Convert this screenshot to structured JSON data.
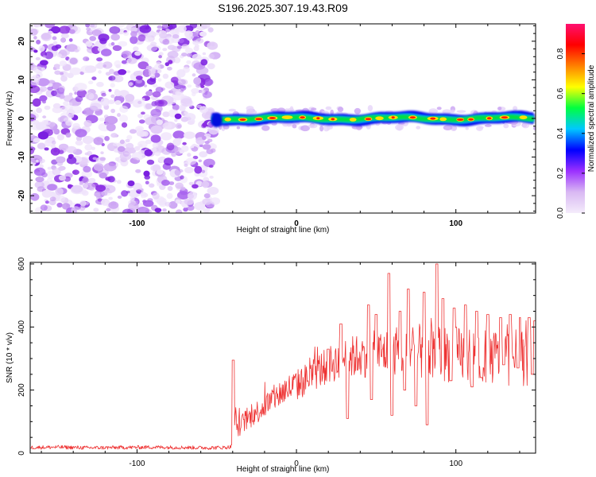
{
  "title": "S196.2025.307.19.43.R09",
  "chart_data": [
    {
      "type": "heatmap",
      "xlabel": "Height of straight line (km)",
      "ylabel": "Frequency (Hz)",
      "xlim": [
        -167,
        150
      ],
      "ylim": [
        -24.5,
        24.5
      ],
      "xticks": [
        -100,
        0,
        100
      ],
      "xtick_labels": [
        "-100",
        "0",
        "100"
      ],
      "yticks": [
        -20,
        -10,
        0,
        10,
        20
      ],
      "ytick_labels": [
        "-20",
        "-10",
        "0",
        "10",
        "20"
      ],
      "noise_region_x": [
        -167,
        -53
      ],
      "signal_region_x": [
        -53,
        150
      ],
      "signal_frequency_hz": 0,
      "colorbar": {
        "label": "Normalized spectral amplitude",
        "range": [
          0,
          0.95
        ],
        "ticks": [
          0.0,
          0.2,
          0.4,
          0.6,
          0.8
        ],
        "tick_labels": [
          "0.0",
          "0.2",
          "0.4",
          "0.6",
          "0.8"
        ],
        "colors": [
          "#f4ecfb",
          "#d9b8f3",
          "#9b30ff",
          "#0000ff",
          "#00c8ff",
          "#00ff40",
          "#ffff00",
          "#ff8000",
          "#ff0000",
          "#ff1070"
        ]
      }
    },
    {
      "type": "line",
      "xlabel": "Height of straight line (km)",
      "ylabel": "SNR (10 * v/v)",
      "xlim": [
        -167,
        150
      ],
      "ylim": [
        0,
        605
      ],
      "xticks": [
        -100,
        0,
        100
      ],
      "xtick_labels": [
        "-100",
        "0",
        "100"
      ],
      "yticks": [
        0,
        200,
        400,
        600
      ],
      "ytick_labels": [
        "0",
        "200",
        "400",
        "600"
      ],
      "line_color": "#ee3333",
      "series": [
        {
          "name": "SNR",
          "x": [
            -167,
            -150,
            -130,
            -110,
            -90,
            -70,
            -55,
            -45,
            -41,
            -39,
            -38,
            -37,
            -35,
            -30,
            -25,
            -20,
            -15,
            -10,
            -5,
            0,
            5,
            10,
            15,
            20,
            25,
            30,
            35,
            40,
            45,
            50,
            55,
            60,
            65,
            70,
            75,
            80,
            85,
            90,
            95,
            100,
            105,
            110,
            115,
            120,
            125,
            130,
            135,
            140,
            145,
            150
          ],
          "y": [
            18,
            19,
            17,
            18,
            19,
            18,
            17,
            18,
            20,
            60,
            120,
            80,
            90,
            110,
            130,
            150,
            170,
            190,
            205,
            215,
            230,
            250,
            265,
            280,
            290,
            300,
            305,
            310,
            312,
            315,
            318,
            320,
            322,
            322,
            322,
            320,
            318,
            316,
            315,
            313,
            312,
            310,
            308,
            306,
            305,
            304,
            304,
            303,
            303,
            302
          ]
        }
      ],
      "spikes": [
        {
          "x": -39.5,
          "y": 295
        },
        {
          "x": 20,
          "y": 330
        },
        {
          "x": 28,
          "y": 410
        },
        {
          "x": 45,
          "y": 470
        },
        {
          "x": 50,
          "y": 440
        },
        {
          "x": 58,
          "y": 570
        },
        {
          "x": 65,
          "y": 450
        },
        {
          "x": 70,
          "y": 520
        },
        {
          "x": 80,
          "y": 510
        },
        {
          "x": 88,
          "y": 600
        },
        {
          "x": 92,
          "y": 490
        },
        {
          "x": 99,
          "y": 460
        },
        {
          "x": 106,
          "y": 470
        },
        {
          "x": 113,
          "y": 450
        },
        {
          "x": 120,
          "y": 440
        },
        {
          "x": 128,
          "y": 430
        },
        {
          "x": 134,
          "y": 440
        },
        {
          "x": 140,
          "y": 430
        },
        {
          "x": 146,
          "y": 430
        },
        {
          "x": 149,
          "y": 420
        }
      ],
      "dips": [
        {
          "x": 32,
          "y": 110
        },
        {
          "x": 47,
          "y": 170
        },
        {
          "x": 60,
          "y": 120
        },
        {
          "x": 68,
          "y": 200
        },
        {
          "x": 75,
          "y": 150
        },
        {
          "x": 82,
          "y": 90
        },
        {
          "x": 97,
          "y": 230
        },
        {
          "x": 110,
          "y": 210
        },
        {
          "x": 116,
          "y": 240
        },
        {
          "x": 130,
          "y": 280
        },
        {
          "x": 139,
          "y": 270
        },
        {
          "x": 148,
          "y": 250
        }
      ]
    }
  ]
}
